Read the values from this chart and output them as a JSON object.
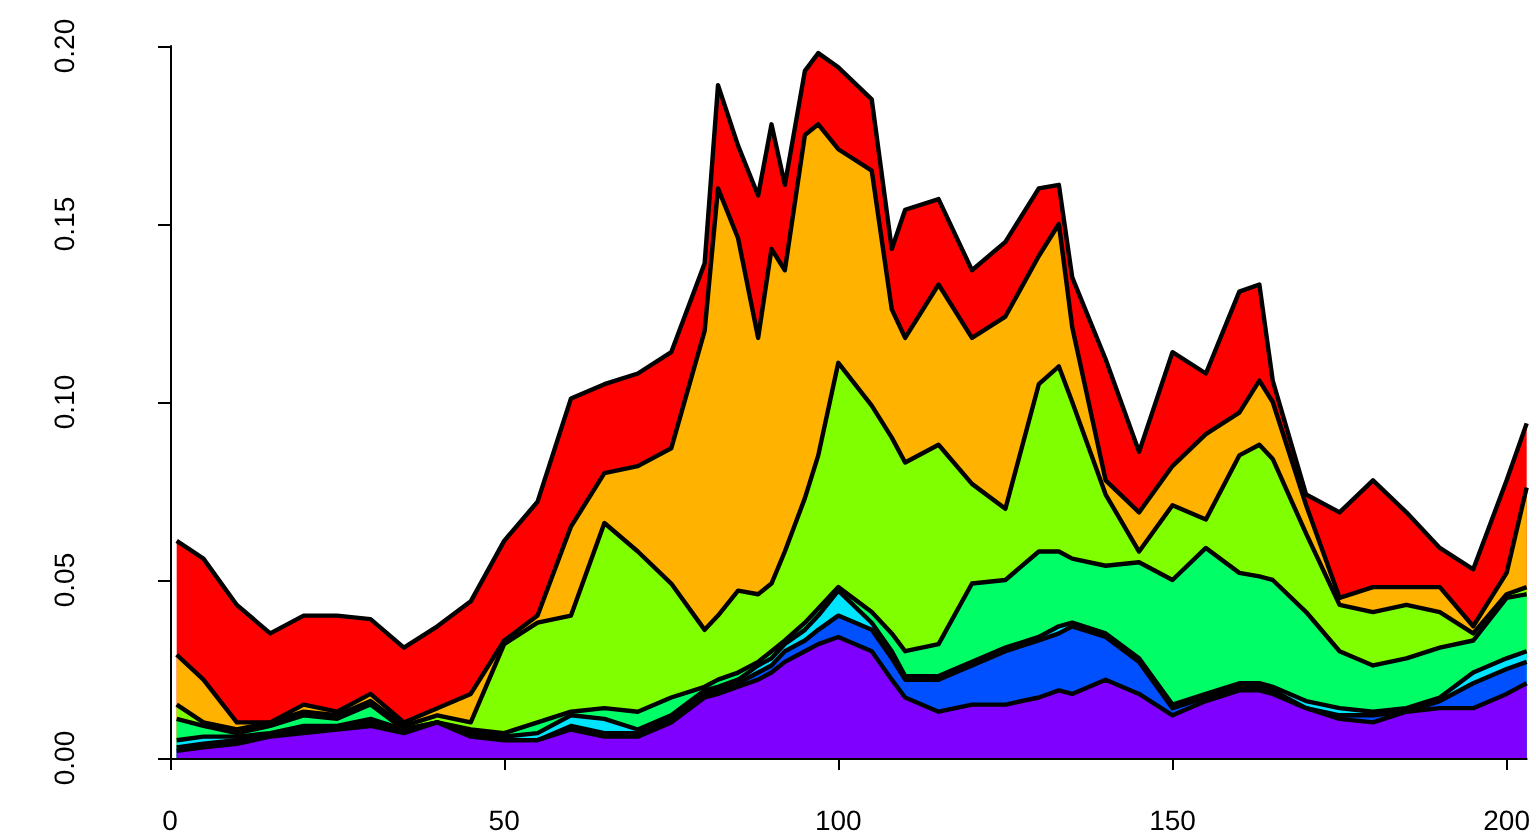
{
  "chart_data": {
    "type": "area",
    "stacked": true,
    "x": [
      1,
      5,
      10,
      15,
      20,
      25,
      30,
      35,
      40,
      45,
      50,
      55,
      60,
      65,
      70,
      75,
      80,
      82,
      85,
      88,
      90,
      92,
      95,
      97,
      100,
      105,
      108,
      110,
      115,
      120,
      125,
      130,
      133,
      135,
      140,
      145,
      150,
      155,
      160,
      163,
      165,
      170,
      175,
      180,
      185,
      190,
      195,
      200,
      203
    ],
    "series": [
      {
        "color": "#8000ff",
        "values": [
          0.002,
          0.003,
          0.004,
          0.006,
          0.007,
          0.008,
          0.009,
          0.007,
          0.01,
          0.006,
          0.005,
          0.005,
          0.008,
          0.006,
          0.006,
          0.01,
          0.017,
          0.018,
          0.02,
          0.022,
          0.024,
          0.027,
          0.03,
          0.032,
          0.034,
          0.03,
          0.022,
          0.017,
          0.013,
          0.015,
          0.015,
          0.017,
          0.019,
          0.018,
          0.022,
          0.018,
          0.012,
          0.016,
          0.019,
          0.019,
          0.018,
          0.014,
          0.011,
          0.01,
          0.013,
          0.014,
          0.014,
          0.018,
          0.021
        ]
      },
      {
        "color": "#0050ff",
        "values": [
          0.001,
          0.001,
          0.001,
          0.0,
          0.001,
          0.0,
          0.001,
          0.0,
          0.0,
          0.0,
          0.0,
          0.0,
          0.001,
          0.001,
          0.001,
          0.001,
          0.001,
          0.001,
          0.001,
          0.002,
          0.002,
          0.003,
          0.003,
          0.004,
          0.006,
          0.006,
          0.006,
          0.005,
          0.009,
          0.011,
          0.015,
          0.016,
          0.016,
          0.019,
          0.012,
          0.009,
          0.002,
          0.001,
          0.001,
          0.001,
          0.001,
          0.0,
          0.001,
          0.002,
          0.0,
          0.002,
          0.007,
          0.007,
          0.006
        ]
      },
      {
        "color": "#00e5ff",
        "values": [
          0.002,
          0.002,
          0.001,
          0.001,
          0.001,
          0.001,
          0.001,
          0.001,
          0.0,
          0.001,
          0.001,
          0.002,
          0.003,
          0.004,
          0.001,
          0.001,
          0.001,
          0.001,
          0.001,
          0.002,
          0.002,
          0.002,
          0.003,
          0.004,
          0.007,
          0.002,
          0.002,
          0.001,
          0.001,
          0.001,
          0.001,
          0.001,
          0.002,
          0.001,
          0.001,
          0.001,
          0.001,
          0.001,
          0.001,
          0.001,
          0.001,
          0.002,
          0.002,
          0.001,
          0.001,
          0.001,
          0.003,
          0.003,
          0.003
        ]
      },
      {
        "color": "#00ff66",
        "values": [
          0.006,
          0.003,
          0.001,
          0.002,
          0.003,
          0.002,
          0.004,
          0.0,
          0.0,
          0.001,
          0.001,
          0.003,
          0.001,
          0.003,
          0.005,
          0.005,
          0.001,
          0.002,
          0.002,
          0.001,
          0.002,
          0.001,
          0.002,
          0.002,
          0.001,
          0.003,
          0.005,
          0.007,
          0.009,
          0.022,
          0.019,
          0.024,
          0.021,
          0.018,
          0.019,
          0.027,
          0.035,
          0.041,
          0.031,
          0.03,
          0.03,
          0.025,
          0.016,
          0.013,
          0.014,
          0.014,
          0.009,
          0.017,
          0.016
        ]
      },
      {
        "color": "#80ff00",
        "values": [
          0.004,
          0.001,
          0.001,
          0.001,
          0.001,
          0.001,
          0.001,
          0.001,
          0.002,
          0.002,
          0.025,
          0.028,
          0.027,
          0.052,
          0.045,
          0.032,
          0.016,
          0.018,
          0.023,
          0.019,
          0.019,
          0.025,
          0.035,
          0.043,
          0.063,
          0.058,
          0.055,
          0.053,
          0.056,
          0.028,
          0.02,
          0.047,
          0.052,
          0.044,
          0.02,
          0.003,
          0.021,
          0.008,
          0.033,
          0.037,
          0.034,
          0.022,
          0.013,
          0.015,
          0.015,
          0.01,
          0.002,
          0.001,
          0.002
        ]
      },
      {
        "color": "#ffb300",
        "values": [
          0.014,
          0.012,
          0.002,
          0.0,
          0.002,
          0.001,
          0.002,
          0.001,
          0.002,
          0.008,
          0.001,
          0.002,
          0.025,
          0.014,
          0.024,
          0.038,
          0.084,
          0.12,
          0.099,
          0.072,
          0.094,
          0.079,
          0.102,
          0.093,
          0.06,
          0.066,
          0.036,
          0.035,
          0.045,
          0.041,
          0.054,
          0.036,
          0.04,
          0.021,
          0.004,
          0.011,
          0.011,
          0.024,
          0.012,
          0.018,
          0.016,
          0.008,
          0.002,
          0.007,
          0.005,
          0.007,
          0.002,
          0.006,
          0.028
        ]
      },
      {
        "color": "#ff0000",
        "values": [
          0.032,
          0.034,
          0.033,
          0.025,
          0.025,
          0.027,
          0.021,
          0.021,
          0.023,
          0.026,
          0.028,
          0.032,
          0.036,
          0.025,
          0.026,
          0.027,
          0.019,
          0.029,
          0.026,
          0.04,
          0.035,
          0.024,
          0.018,
          0.02,
          0.023,
          0.02,
          0.017,
          0.036,
          0.024,
          0.019,
          0.021,
          0.019,
          0.011,
          0.014,
          0.034,
          0.017,
          0.032,
          0.017,
          0.034,
          0.027,
          0.006,
          0.003,
          0.024,
          0.03,
          0.021,
          0.011,
          0.016,
          0.026,
          0.018
        ]
      }
    ],
    "xlim": [
      0,
      203
    ],
    "xticks": [
      0,
      50,
      100,
      150,
      200
    ],
    "ylim": [
      0,
      0.2
    ],
    "yticks": [
      {
        "value": 0,
        "label": "0.00"
      },
      {
        "value": 0.05,
        "label": "0.05"
      },
      {
        "value": 0.1,
        "label": "0.10"
      },
      {
        "value": 0.15,
        "label": "0.15"
      },
      {
        "value": 0.2,
        "label": "0.20"
      }
    ],
    "grid": false,
    "marker": "none"
  }
}
